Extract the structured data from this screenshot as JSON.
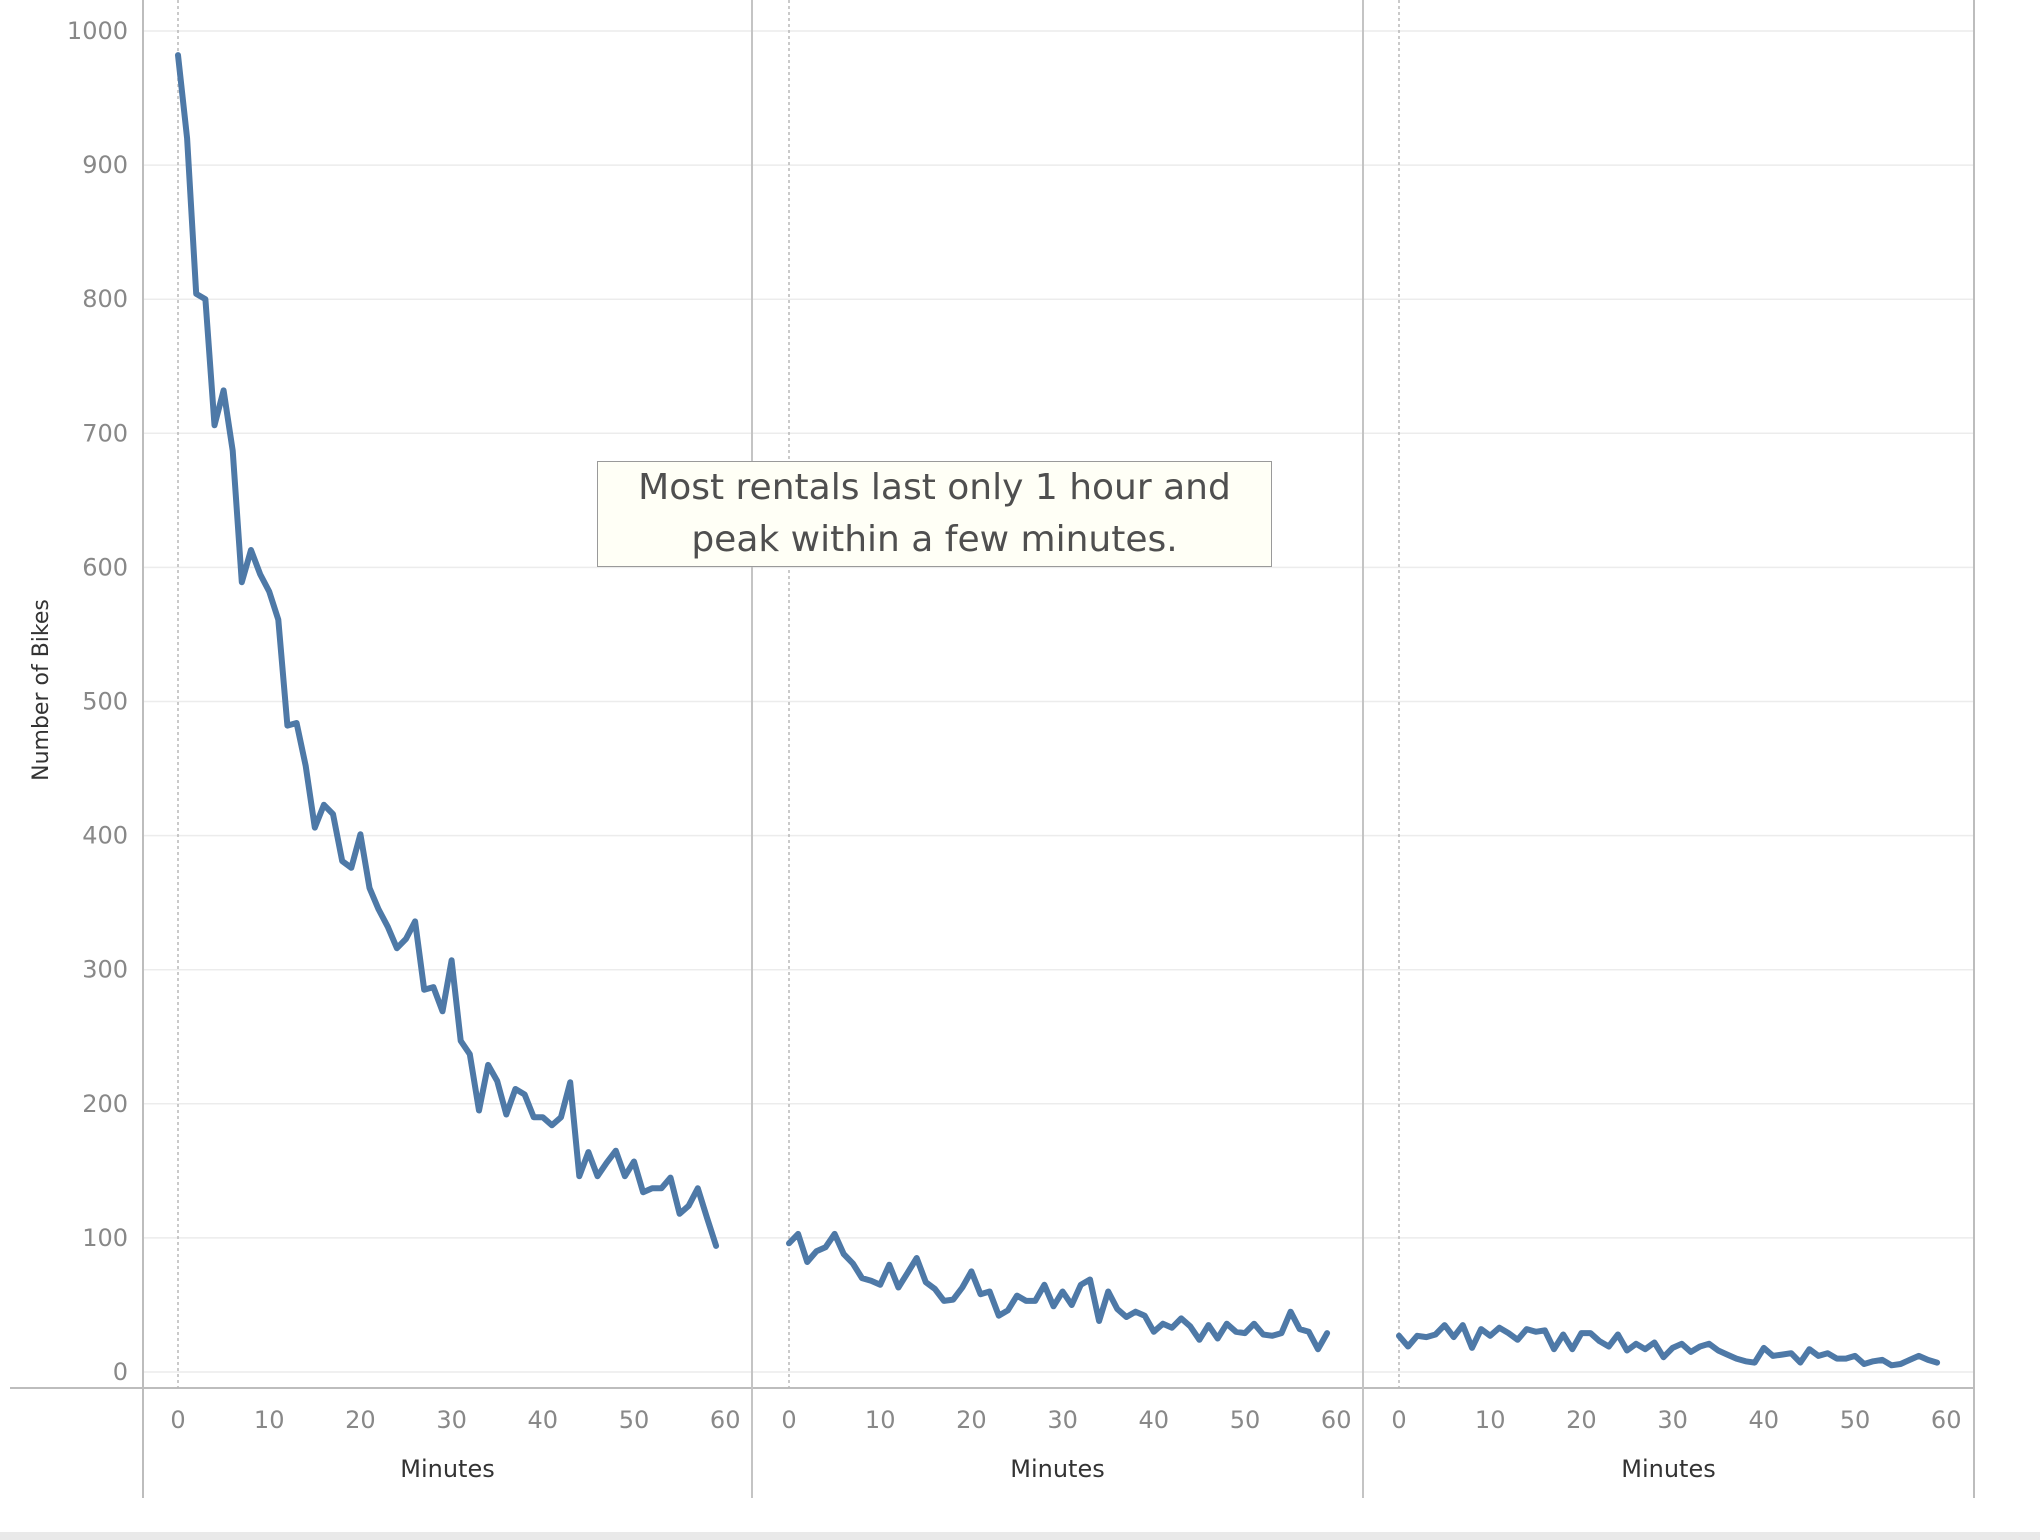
{
  "chart_data": {
    "type": "line",
    "ylabel": "Number of Bikes",
    "ylim": [
      0,
      1000
    ],
    "yticks": [
      0,
      100,
      200,
      300,
      400,
      500,
      600,
      700,
      800,
      900,
      1000
    ],
    "xticks": [
      0,
      10,
      20,
      30,
      40,
      50,
      60
    ],
    "annotation": [
      "Most rentals last only 1 hour and",
      "peak within a few minutes."
    ],
    "line_color": "#4e79a7",
    "grid": true,
    "panels": [
      {
        "xlabel": "Minutes",
        "x": [
          0,
          1,
          2,
          3,
          4,
          5,
          6,
          7,
          8,
          9,
          10,
          11,
          12,
          13,
          14,
          15,
          16,
          17,
          18,
          19,
          20,
          21,
          22,
          23,
          24,
          25,
          26,
          27,
          28,
          29,
          30,
          31,
          32,
          33,
          34,
          35,
          36,
          37,
          38,
          39,
          40,
          41,
          42,
          43,
          44,
          45,
          46,
          47,
          48,
          49,
          50,
          51,
          52,
          53,
          54,
          55,
          56,
          57,
          58,
          59
        ],
        "y": [
          982,
          920,
          804,
          800,
          706,
          732,
          687,
          589,
          613,
          595,
          582,
          561,
          482,
          484,
          452,
          406,
          423,
          416,
          381,
          376,
          401,
          361,
          345,
          332,
          316,
          323,
          336,
          285,
          287,
          269,
          307,
          247,
          237,
          195,
          229,
          217,
          192,
          211,
          207,
          190,
          190,
          184,
          190,
          216,
          146,
          164,
          146,
          156,
          165,
          146,
          157,
          134,
          137,
          137,
          145,
          118,
          124,
          137,
          115,
          94
        ]
      },
      {
        "xlabel": "Minutes",
        "x": [
          0,
          1,
          2,
          3,
          4,
          5,
          6,
          7,
          8,
          9,
          10,
          11,
          12,
          13,
          14,
          15,
          16,
          17,
          18,
          19,
          20,
          21,
          22,
          23,
          24,
          25,
          26,
          27,
          28,
          29,
          30,
          31,
          32,
          33,
          34,
          35,
          36,
          37,
          38,
          39,
          40,
          41,
          42,
          43,
          44,
          45,
          46,
          47,
          48,
          49,
          50,
          51,
          52,
          53,
          54,
          55,
          56,
          57,
          58,
          59
        ],
        "y": [
          96,
          103,
          82,
          90,
          93,
          103,
          88,
          81,
          70,
          68,
          65,
          80,
          63,
          74,
          85,
          67,
          62,
          53,
          54,
          63,
          75,
          58,
          60,
          42,
          46,
          57,
          53,
          53,
          65,
          49,
          60,
          50,
          65,
          69,
          38,
          60,
          47,
          41,
          45,
          42,
          30,
          36,
          33,
          40,
          34,
          24,
          35,
          25,
          36,
          30,
          29,
          36,
          28,
          27,
          29,
          45,
          32,
          30,
          17,
          29
        ]
      },
      {
        "xlabel": "Minutes",
        "x": [
          0,
          1,
          2,
          3,
          4,
          5,
          6,
          7,
          8,
          9,
          10,
          11,
          12,
          13,
          14,
          15,
          16,
          17,
          18,
          19,
          20,
          21,
          22,
          23,
          24,
          25,
          26,
          27,
          28,
          29,
          30,
          31,
          32,
          33,
          34,
          35,
          36,
          37,
          38,
          39,
          40,
          41,
          42,
          43,
          44,
          45,
          46,
          47,
          48,
          49,
          50,
          51,
          52,
          53,
          54,
          55,
          56,
          57,
          58,
          59
        ],
        "y": [
          27,
          19,
          27,
          26,
          28,
          35,
          26,
          35,
          18,
          32,
          27,
          33,
          29,
          24,
          32,
          30,
          31,
          17,
          28,
          17,
          29,
          29,
          23,
          19,
          28,
          16,
          21,
          17,
          22,
          11,
          18,
          21,
          15,
          19,
          21,
          16,
          13,
          10,
          8,
          7,
          18,
          12,
          13,
          14,
          7,
          17,
          12,
          14,
          10,
          10,
          12,
          6,
          8,
          9,
          5,
          6,
          9,
          12,
          9,
          7
        ]
      }
    ]
  }
}
